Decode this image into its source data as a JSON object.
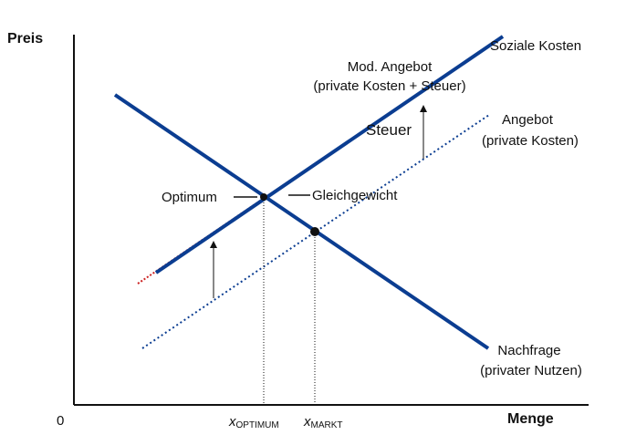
{
  "axes": {
    "y_title": "Preis",
    "x_title": "Menge",
    "origin": "0"
  },
  "labels": {
    "soziale_kosten": "Soziale Kosten",
    "mod_angebot_line1": "Mod. Angebot",
    "mod_angebot_line2": "(private Kosten + Steuer)",
    "steuer": "Steuer",
    "angebot_line1": "Angebot",
    "angebot_line2": "(private Kosten)",
    "optimum": "Optimum",
    "gleichgewicht": "Gleichgewicht",
    "nachfrage_line1": "Nachfrage",
    "nachfrage_line2": "(privater Nutzen)"
  },
  "x_ticks": {
    "optimum_var": "x",
    "optimum_sub": "OPTIMUM",
    "markt_var": "x",
    "markt_sub": "MARKT"
  },
  "colors": {
    "curve": "#0b3d91",
    "social_cost": "#cc2222",
    "axis": "#111111"
  }
}
